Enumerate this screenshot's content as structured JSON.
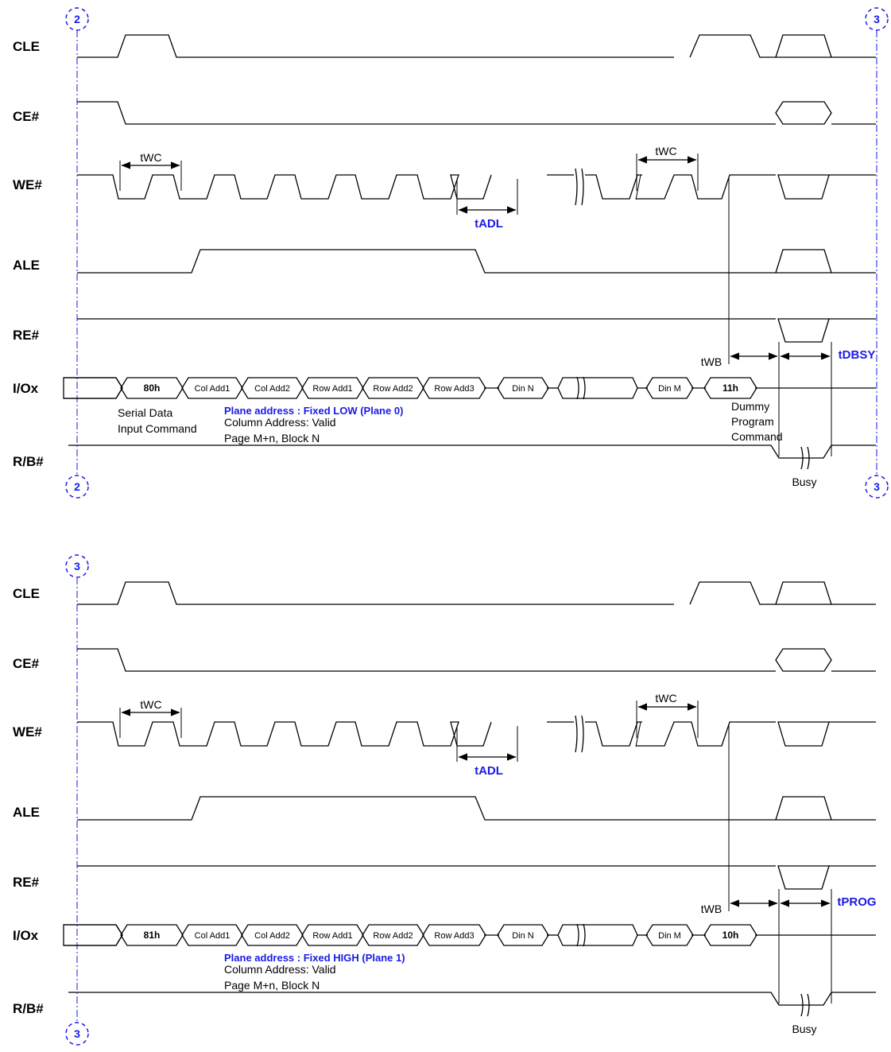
{
  "panels": [
    {
      "connector_top_left": "2",
      "connector_top_right": "3",
      "connector_bottom_left": "2",
      "connector_bottom_right": "3",
      "signals": [
        "CLE",
        "CE#",
        "WE#",
        "ALE",
        "RE#",
        "I/Ox",
        "R/B#"
      ],
      "twc_label": "tWC",
      "tadl_label": "tADL",
      "twb_label": "tWB",
      "busy_time_label": "tDBSY",
      "io_cycles": [
        "80h",
        "Col Add1",
        "Col Add2",
        "Row Add1",
        "Row Add2",
        "Row Add3",
        "Din N",
        "Din M",
        "11h"
      ],
      "command_note_lines": [
        "Serial Data",
        "Input Command"
      ],
      "plane_address": "Plane address : Fixed LOW (Plane 0)",
      "column_address": "Column Address: Valid",
      "page_block": "Page M+n, Block N",
      "end_command_lines": [
        "Dummy",
        "Program",
        "Command"
      ],
      "busy_label": "Busy"
    },
    {
      "connector_top_left": "3",
      "connector_bottom_left": "3",
      "signals": [
        "CLE",
        "CE#",
        "WE#",
        "ALE",
        "RE#",
        "I/Ox",
        "R/B#"
      ],
      "twc_label": "tWC",
      "tadl_label": "tADL",
      "twb_label": "tWB",
      "busy_time_label": "tPROG",
      "io_cycles": [
        "81h",
        "Col Add1",
        "Col Add2",
        "Row Add1",
        "Row Add2",
        "Row Add3",
        "Din N",
        "Din M",
        "10h"
      ],
      "plane_address": "Plane address : Fixed HIGH (Plane 1)",
      "column_address": "Column Address: Valid",
      "page_block": "Page M+n, Block N",
      "busy_label": "Busy"
    }
  ]
}
